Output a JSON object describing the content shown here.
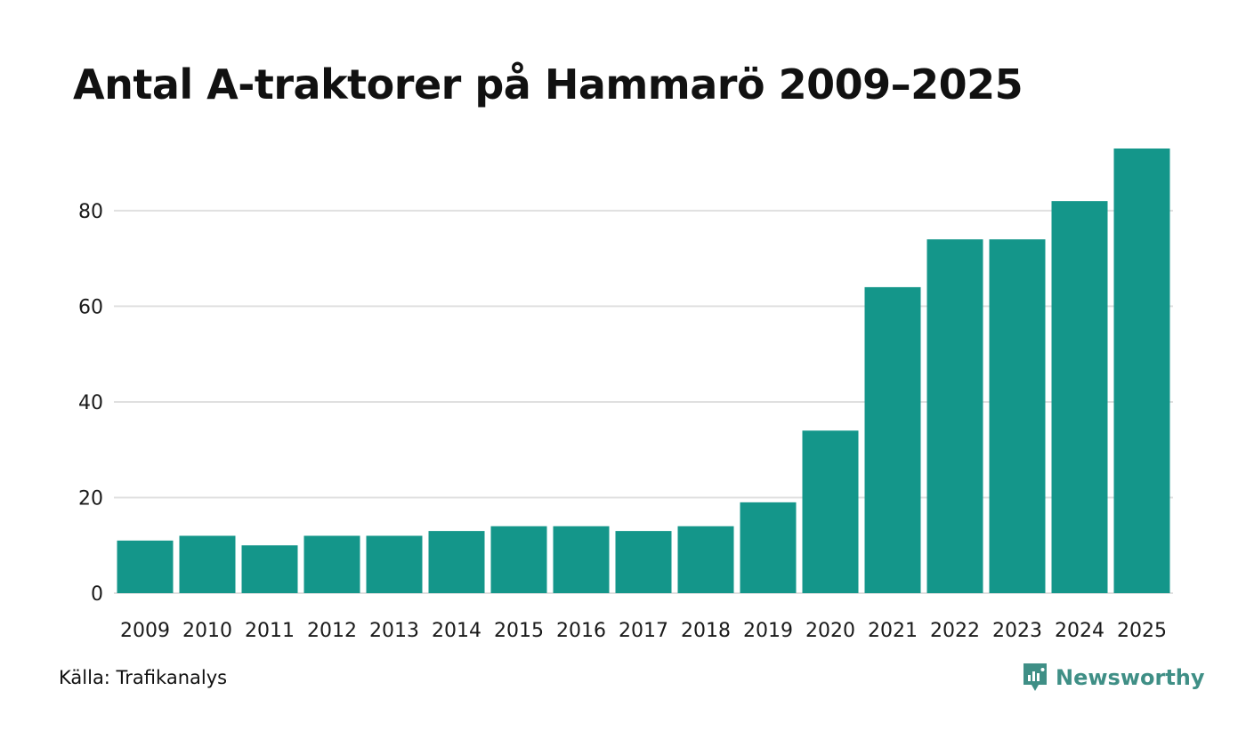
{
  "chart_data": {
    "type": "bar",
    "title": "Antal A-traktorer på Hammarö 2009–2025",
    "xlabel": "",
    "ylabel": "",
    "categories": [
      "2009",
      "2010",
      "2011",
      "2012",
      "2013",
      "2014",
      "2015",
      "2016",
      "2017",
      "2018",
      "2019",
      "2020",
      "2021",
      "2022",
      "2023",
      "2024",
      "2025"
    ],
    "values": [
      11,
      12,
      10,
      12,
      12,
      13,
      14,
      14,
      13,
      14,
      19,
      34,
      64,
      74,
      74,
      82,
      93
    ],
    "yticks": [
      "0",
      "20",
      "40",
      "60",
      "80"
    ],
    "ylim": [
      0,
      93
    ],
    "grid": true,
    "bar_color": "#14968a",
    "grid_color": "#e0e0e0"
  },
  "footer": {
    "source": "Källa: Trafikanalys",
    "brand": "Newsworthy",
    "brand_icon": "newsworthy-logo-icon",
    "brand_color": "#3f8f86"
  }
}
